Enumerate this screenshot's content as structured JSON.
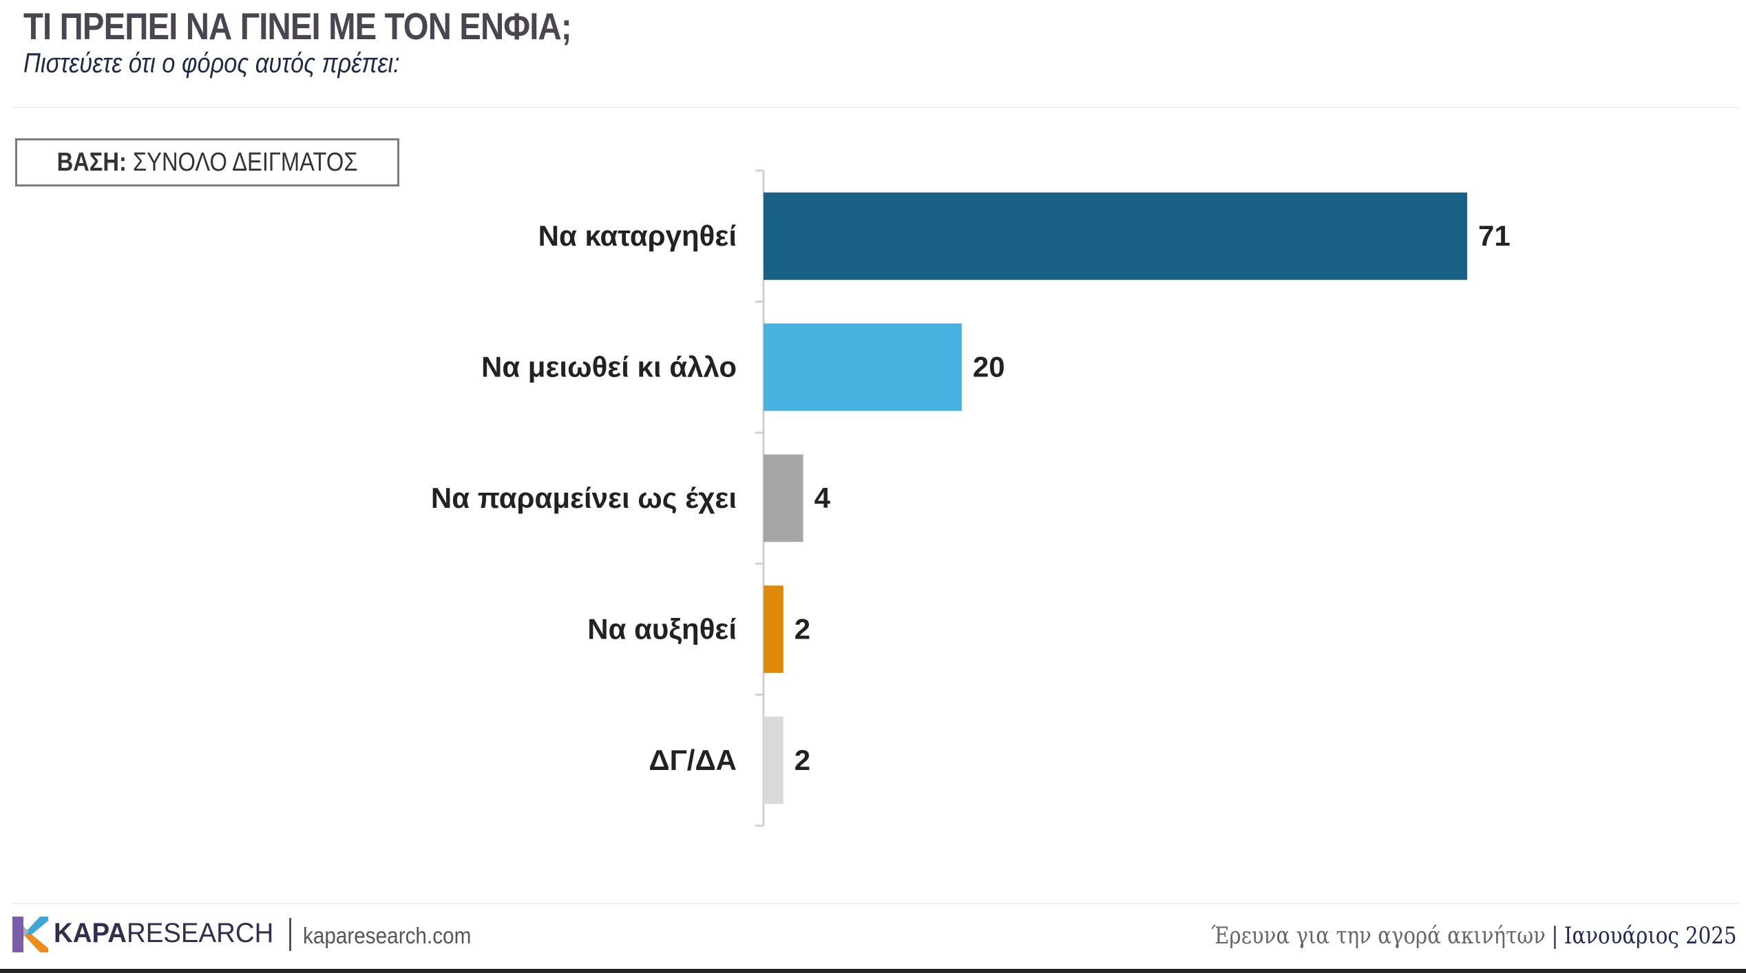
{
  "header": {
    "title": "ΤΙ ΠΡΕΠΕΙ ΝΑ ΓΙΝΕΙ ΜΕ ΤΟΝ ΕΝΦΙΑ;",
    "subtitle": "Πιστεύετε ότι ο φόρος αυτός πρέπει:"
  },
  "base_label": {
    "bold": "ΒΑΣΗ:",
    "text": "ΣΥΝΟΛΟ ΔΕΙΓΜΑΤΟΣ"
  },
  "chart_data": {
    "type": "bar",
    "orientation": "horizontal",
    "categories": [
      "Να καταργηθεί",
      "Να μειωθεί κι άλλο",
      "Να παραμείνει ως έχει",
      "Να αυξηθεί",
      "ΔΓ/ΔΑ"
    ],
    "values": [
      71,
      20,
      4,
      2,
      2
    ],
    "colors": [
      "#185f84",
      "#47b2e0",
      "#a6a6a6",
      "#e08a0c",
      "#d9d9d9"
    ],
    "title": "",
    "xlabel": "",
    "ylabel": "",
    "xlim": [
      0,
      71
    ],
    "grid": false,
    "legend": "none"
  },
  "footer": {
    "brand_bold": "ΚΑΡΑ",
    "brand_rest": "RESEARCH",
    "website": "kaparesearch.com",
    "survey": "Έρευνα για την αγορά ακινήτων",
    "separator": "|",
    "date": "Ιανουάριος 2025"
  },
  "logo_colors": {
    "purple": "#7b5ea7",
    "blue": "#3aa7d8",
    "orange": "#f08a1c",
    "grey": "#b0b0b0"
  }
}
